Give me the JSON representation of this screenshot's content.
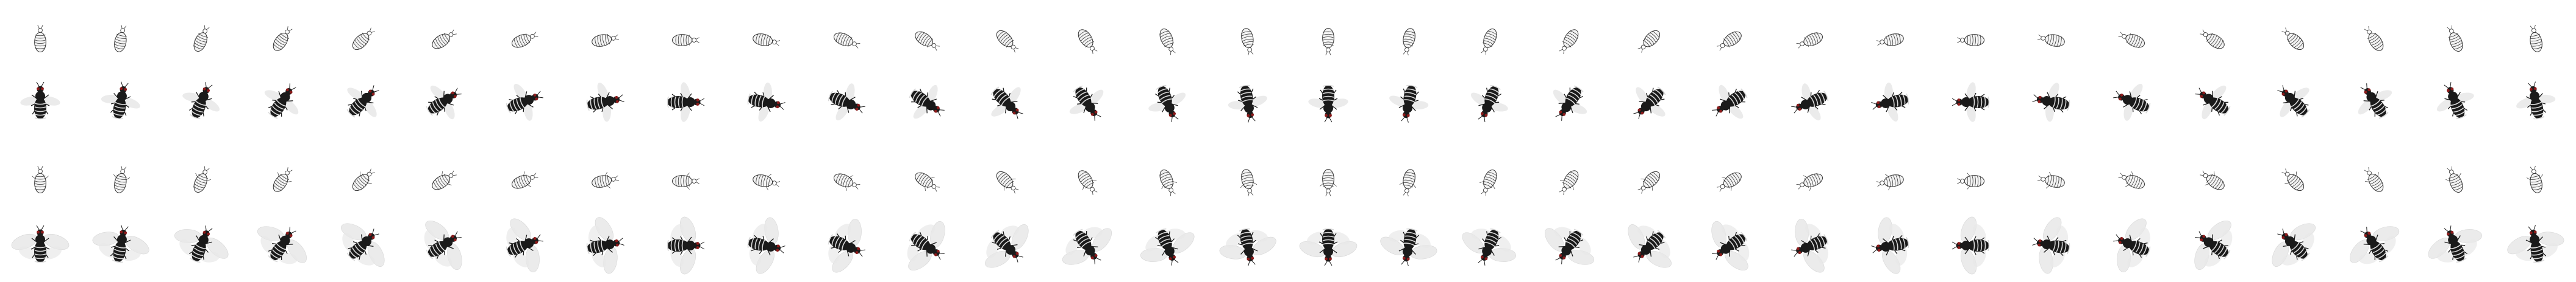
{
  "sprite_sheet": {
    "subject": "fly",
    "directions_per_row": 32,
    "rows": [
      {
        "kind": "shadow",
        "variant": "wings-folded",
        "frame": 1
      },
      {
        "kind": "fly",
        "variant": "wings-folded",
        "frame": 1
      },
      {
        "kind": "shadow",
        "variant": "wings-spread",
        "frame": 2
      },
      {
        "kind": "fly",
        "variant": "wings-spread",
        "frame": 2
      }
    ],
    "colors": {
      "background": "#ffffff",
      "outline": "#333333",
      "body_dark": "#1a1a1a",
      "stripe_light": "#d8d8d8",
      "eye": "#8b1a1a",
      "wing": "#e8e8e8",
      "shadow_fill": "#f2f2f2"
    }
  }
}
